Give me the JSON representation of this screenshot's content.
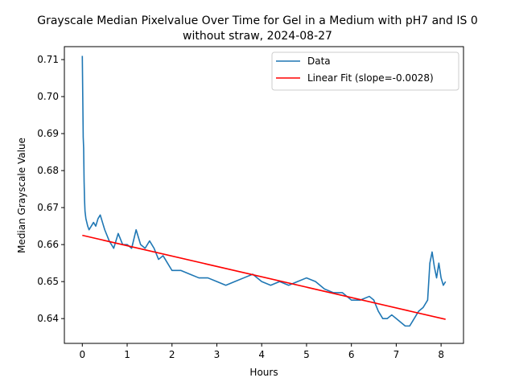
{
  "chart_data": {
    "type": "line",
    "title_line1": "Grayscale Median Pixelvalue Over Time for Gel in a Medium with pH7 and IS 0",
    "title_line2": "without straw, 2024-08-27",
    "xlabel": "Hours",
    "ylabel": "Median Grayscale Value",
    "xlim": [
      -0.4,
      8.5
    ],
    "ylim": [
      0.6333,
      0.7135
    ],
    "xticks": [
      0,
      1,
      2,
      3,
      4,
      5,
      6,
      7,
      8
    ],
    "yticks": [
      0.64,
      0.65,
      0.66,
      0.67,
      0.68,
      0.69,
      0.7,
      0.71
    ],
    "xtick_labels": [
      "0",
      "1",
      "2",
      "3",
      "4",
      "5",
      "6",
      "7",
      "8"
    ],
    "ytick_labels": [
      "0.64",
      "0.65",
      "0.66",
      "0.67",
      "0.68",
      "0.69",
      "0.70",
      "0.71"
    ],
    "grid": false,
    "legend_position": "top-right",
    "series": [
      {
        "name": "Data",
        "color": "#1f77b4",
        "x": [
          0.0,
          0.01,
          0.02,
          0.03,
          0.04,
          0.05,
          0.06,
          0.08,
          0.1,
          0.12,
          0.15,
          0.2,
          0.25,
          0.3,
          0.35,
          0.4,
          0.45,
          0.5,
          0.6,
          0.7,
          0.8,
          0.9,
          1.0,
          1.1,
          1.2,
          1.3,
          1.4,
          1.5,
          1.6,
          1.7,
          1.8,
          1.9,
          2.0,
          2.2,
          2.4,
          2.6,
          2.8,
          3.0,
          3.2,
          3.4,
          3.6,
          3.8,
          4.0,
          4.2,
          4.4,
          4.6,
          4.8,
          5.0,
          5.2,
          5.4,
          5.6,
          5.8,
          6.0,
          6.2,
          6.4,
          6.5,
          6.6,
          6.7,
          6.8,
          6.9,
          7.0,
          7.1,
          7.2,
          7.3,
          7.4,
          7.5,
          7.6,
          7.7,
          7.75,
          7.8,
          7.85,
          7.9,
          7.95,
          8.0,
          8.05,
          8.1
        ],
        "y": [
          0.711,
          0.7,
          0.689,
          0.686,
          0.677,
          0.672,
          0.669,
          0.667,
          0.666,
          0.665,
          0.664,
          0.665,
          0.666,
          0.665,
          0.667,
          0.668,
          0.666,
          0.664,
          0.661,
          0.659,
          0.663,
          0.66,
          0.66,
          0.659,
          0.664,
          0.66,
          0.659,
          0.661,
          0.659,
          0.656,
          0.657,
          0.655,
          0.653,
          0.653,
          0.652,
          0.651,
          0.651,
          0.65,
          0.649,
          0.65,
          0.651,
          0.652,
          0.65,
          0.649,
          0.65,
          0.649,
          0.65,
          0.651,
          0.65,
          0.648,
          0.647,
          0.647,
          0.645,
          0.645,
          0.646,
          0.645,
          0.642,
          0.64,
          0.64,
          0.641,
          0.64,
          0.639,
          0.638,
          0.638,
          0.64,
          0.642,
          0.643,
          0.645,
          0.655,
          0.658,
          0.654,
          0.651,
          0.655,
          0.651,
          0.649,
          0.65
        ]
      },
      {
        "name": "Linear Fit (slope=-0.0028)",
        "color": "#ff0000",
        "x": [
          0.0,
          8.1
        ],
        "y": [
          0.6625,
          0.6398
        ]
      }
    ]
  }
}
